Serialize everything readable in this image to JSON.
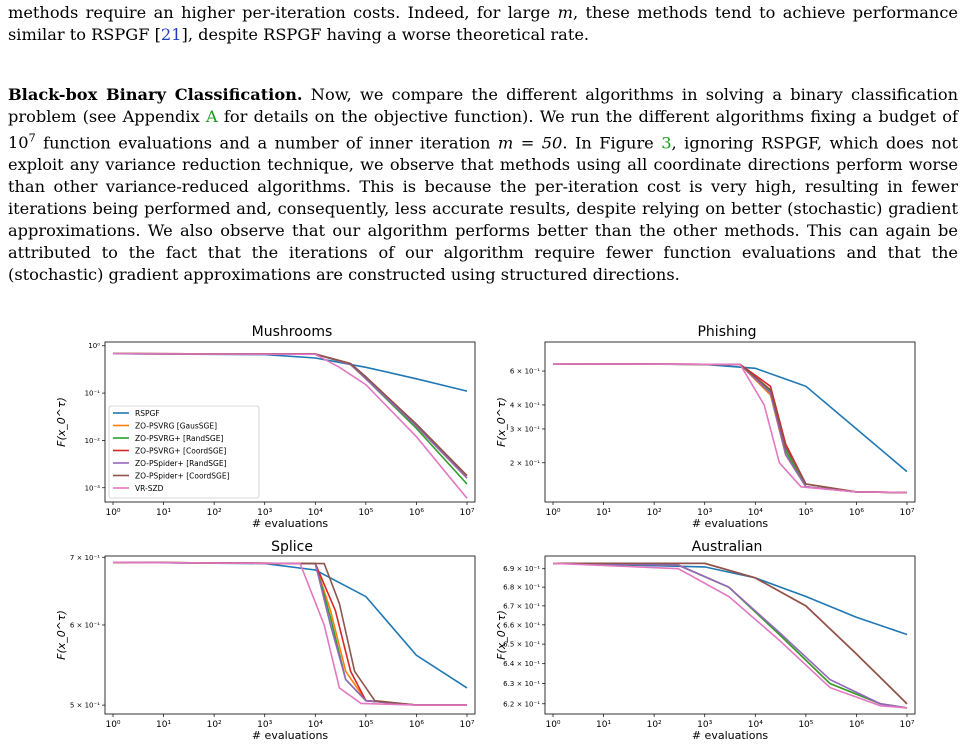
{
  "paragraph_top": {
    "text_a": "methods require an higher per-iteration costs. Indeed, for large ",
    "m": "m",
    "text_b": ", these methods tend to achieve performance similar to RSPGF [",
    "ref21": "21",
    "text_c": "], despite RSPGF having a worse theoretical rate."
  },
  "paragraph_main": {
    "heading": "Black-box Binary Classification.",
    "s1": " Now, we compare the different algorithms in solving a binary classification problem (see Appendix ",
    "appendix": "A",
    "s2": " for details on the objective function). We run the different algorithms fixing a budget of ",
    "budget_base": "10",
    "budget_exp": "7",
    "s3": " function evaluations and a number of inner iteration ",
    "m_eq": "m = 50",
    "s4": ". In Figure ",
    "fig_ref": "3",
    "s5": ", ignoring RSPGF, which does not exploit any variance reduction technique, we observe that methods using all coordinate directions perform worse than other variance-reduced algorithms. This is because the per-iteration cost is very high, resulting in fewer iterations being performed and, consequently, less accurate results, despite relying on better (stochastic) gradient approximations. We also observe that our algorithm performs better than the other methods. This can again be attributed to the fact that the iterations of our algorithm require fewer function evaluations and that the (stochastic) gradient approximations are constructed using structured directions."
  },
  "colors": {
    "RSPGF": "#1f77b4",
    "ZO-PSVRG [GausSGE]": "#ff7f0e",
    "ZO-PSVRG+ [RandSGE]": "#2ca02c",
    "ZO-PSVRG+ [CoordSGE]": "#d62728",
    "ZO-PSpider+ [RandSGE]": "#9467bd",
    "ZO-PSpider+ [CoordSGE]": "#8c564b",
    "VR-SZD": "#e377c2"
  },
  "chart_data": [
    {
      "type": "line",
      "title": "Mushrooms",
      "xlabel": "# evaluations",
      "ylabel": "F(x_0^τ)",
      "xscale": "log",
      "yscale": "log",
      "xlim": [
        1,
        10000000
      ],
      "ylim": [
        0.0005,
        1.2
      ],
      "x_ticks": [
        "10⁰",
        "10¹",
        "10²",
        "10³",
        "10⁴",
        "10⁵",
        "10⁶",
        "10⁷"
      ],
      "y_ticks": [
        {
          "v": 1,
          "t": "10⁰"
        },
        {
          "v": 0.1,
          "t": "10⁻¹"
        },
        {
          "v": 0.01,
          "t": "10⁻²"
        },
        {
          "v": 0.001,
          "t": "10⁻³"
        }
      ],
      "legend": "left-middle",
      "series": [
        {
          "name": "RSPGF",
          "x": [
            1,
            1000,
            10000,
            100000,
            1000000,
            10000000
          ],
          "y": [
            0.68,
            0.65,
            0.55,
            0.35,
            0.2,
            0.11
          ]
        },
        {
          "name": "ZO-PSVRG [GausSGE]",
          "x": [
            1,
            10000,
            50000,
            100000,
            1000000,
            10000000
          ],
          "y": [
            0.68,
            0.67,
            0.4,
            0.2,
            0.02,
            0.0016
          ]
        },
        {
          "name": "ZO-PSVRG+ [RandSGE]",
          "x": [
            1,
            10000,
            50000,
            100000,
            1000000,
            10000000
          ],
          "y": [
            0.68,
            0.67,
            0.4,
            0.2,
            0.018,
            0.0012
          ]
        },
        {
          "name": "ZO-PSVRG+ [CoordSGE]",
          "x": [
            1,
            10000,
            50000,
            100000,
            1000000,
            10000000
          ],
          "y": [
            0.68,
            0.67,
            0.42,
            0.22,
            0.022,
            0.0018
          ]
        },
        {
          "name": "ZO-PSpider+ [RandSGE]",
          "x": [
            1,
            10000,
            50000,
            100000,
            1000000,
            10000000
          ],
          "y": [
            0.68,
            0.67,
            0.4,
            0.2,
            0.02,
            0.0016
          ]
        },
        {
          "name": "ZO-PSpider+ [CoordSGE]",
          "x": [
            1,
            10000,
            50000,
            100000,
            1000000,
            10000000
          ],
          "y": [
            0.68,
            0.67,
            0.42,
            0.22,
            0.022,
            0.0018
          ]
        },
        {
          "name": "VR-SZD",
          "x": [
            1,
            10000,
            30000,
            100000,
            1000000,
            10000000
          ],
          "y": [
            0.68,
            0.66,
            0.35,
            0.15,
            0.012,
            0.0006
          ]
        }
      ]
    },
    {
      "type": "line",
      "title": "Phishing",
      "xlabel": "# evaluations",
      "ylabel": "F(x_0^τ)",
      "xscale": "log",
      "yscale": "log",
      "xlim": [
        1,
        10000000
      ],
      "ylim": [
        0.125,
        0.85
      ],
      "x_ticks": [
        "10⁰",
        "10¹",
        "10²",
        "10³",
        "10⁴",
        "10⁵",
        "10⁶",
        "10⁷"
      ],
      "y_ticks": [
        {
          "v": 0.6,
          "t": "6 × 10⁻¹"
        },
        {
          "v": 0.4,
          "t": "4 × 10⁻¹"
        },
        {
          "v": 0.3,
          "t": "3 × 10⁻¹"
        },
        {
          "v": 0.2,
          "t": "2 × 10⁻¹"
        }
      ],
      "series": [
        {
          "name": "RSPGF",
          "x": [
            1,
            1000,
            10000,
            100000,
            1000000,
            10000000
          ],
          "y": [
            0.655,
            0.65,
            0.62,
            0.5,
            0.3,
            0.18
          ]
        },
        {
          "name": "ZO-PSVRG [GausSGE]",
          "x": [
            1,
            5000,
            20000,
            40000,
            100000,
            1000000,
            10000000
          ],
          "y": [
            0.655,
            0.65,
            0.45,
            0.22,
            0.15,
            0.141,
            0.14
          ]
        },
        {
          "name": "ZO-PSVRG+ [RandSGE]",
          "x": [
            1,
            5000,
            20000,
            40000,
            100000,
            1000000,
            10000000
          ],
          "y": [
            0.655,
            0.65,
            0.47,
            0.23,
            0.15,
            0.141,
            0.14
          ]
        },
        {
          "name": "ZO-PSVRG+ [CoordSGE]",
          "x": [
            1,
            5000,
            20000,
            40000,
            100000,
            1000000,
            10000000
          ],
          "y": [
            0.655,
            0.65,
            0.5,
            0.25,
            0.155,
            0.141,
            0.14
          ]
        },
        {
          "name": "ZO-PSpider+ [RandSGE]",
          "x": [
            1,
            5000,
            20000,
            40000,
            100000,
            1000000,
            10000000
          ],
          "y": [
            0.655,
            0.65,
            0.46,
            0.22,
            0.15,
            0.141,
            0.14
          ]
        },
        {
          "name": "ZO-PSpider+ [CoordSGE]",
          "x": [
            1,
            5000,
            20000,
            40000,
            100000,
            1000000,
            10000000
          ],
          "y": [
            0.655,
            0.65,
            0.48,
            0.24,
            0.155,
            0.141,
            0.14
          ]
        },
        {
          "name": "VR-SZD",
          "x": [
            1,
            5000,
            15000,
            30000,
            80000,
            1000000,
            10000000
          ],
          "y": [
            0.655,
            0.65,
            0.4,
            0.2,
            0.15,
            0.141,
            0.14
          ]
        }
      ]
    },
    {
      "type": "line",
      "title": "Splice",
      "xlabel": "# evaluations",
      "ylabel": "F(x_0^τ)",
      "xscale": "log",
      "yscale": "log",
      "xlim": [
        1,
        10000000
      ],
      "ylim": [
        0.49,
        0.702
      ],
      "x_ticks": [
        "10⁰",
        "10¹",
        "10²",
        "10³",
        "10⁴",
        "10⁵",
        "10⁶",
        "10⁷"
      ],
      "y_ticks": [
        {
          "v": 0.7,
          "t": "7 × 10⁻¹"
        },
        {
          "v": 0.6,
          "t": "6 × 10⁻¹"
        },
        {
          "v": 0.5,
          "t": "5 × 10⁻¹"
        }
      ],
      "series": [
        {
          "name": "RSPGF",
          "x": [
            1,
            1000,
            10000,
            100000,
            1000000,
            10000000
          ],
          "y": [
            0.692,
            0.69,
            0.68,
            0.64,
            0.56,
            0.52
          ]
        },
        {
          "name": "ZO-PSVRG [GausSGE]",
          "x": [
            1,
            10000,
            20000,
            40000,
            100000,
            1000000,
            10000000
          ],
          "y": [
            0.692,
            0.69,
            0.62,
            0.54,
            0.505,
            0.5,
            0.5
          ]
        },
        {
          "name": "ZO-PSVRG+ [RandSGE]",
          "x": [
            1,
            10000,
            20000,
            40000,
            100000,
            1000000,
            10000000
          ],
          "y": [
            0.692,
            0.69,
            0.61,
            0.53,
            0.505,
            0.5,
            0.5
          ]
        },
        {
          "name": "ZO-PSVRG+ [CoordSGE]",
          "x": [
            1,
            10000,
            25000,
            50000,
            100000,
            1000000,
            10000000
          ],
          "y": [
            0.692,
            0.69,
            0.62,
            0.54,
            0.505,
            0.5,
            0.5
          ]
        },
        {
          "name": "ZO-PSpider+ [RandSGE]",
          "x": [
            1,
            10000,
            20000,
            40000,
            100000,
            1000000,
            10000000
          ],
          "y": [
            0.692,
            0.69,
            0.6,
            0.53,
            0.505,
            0.5,
            0.5
          ]
        },
        {
          "name": "ZO-PSpider+ [CoordSGE]",
          "x": [
            1,
            15000,
            30000,
            60000,
            150000,
            1000000,
            10000000
          ],
          "y": [
            0.692,
            0.69,
            0.63,
            0.54,
            0.505,
            0.5,
            0.5
          ]
        },
        {
          "name": "VR-SZD",
          "x": [
            1,
            5000,
            15000,
            30000,
            80000,
            1000000,
            10000000
          ],
          "y": [
            0.692,
            0.69,
            0.6,
            0.52,
            0.502,
            0.5,
            0.5
          ]
        }
      ]
    },
    {
      "type": "line",
      "title": "Australian",
      "xlabel": "# evaluations",
      "ylabel": "F(x_0^τ)",
      "xscale": "log",
      "yscale": "log",
      "xlim": [
        1,
        10000000
      ],
      "ylim": [
        0.615,
        0.697
      ],
      "x_ticks": [
        "10⁰",
        "10¹",
        "10²",
        "10³",
        "10⁴",
        "10⁵",
        "10⁶",
        "10⁷"
      ],
      "y_ticks": [
        {
          "v": 0.69,
          "t": "6.9 × 10⁻¹"
        },
        {
          "v": 0.68,
          "t": "6.8 × 10⁻¹"
        },
        {
          "v": 0.67,
          "t": "6.7 × 10⁻¹"
        },
        {
          "v": 0.66,
          "t": "6.6 × 10⁻¹"
        },
        {
          "v": 0.65,
          "t": "6.5 × 10⁻¹"
        },
        {
          "v": 0.64,
          "t": "6.4 × 10⁻¹"
        },
        {
          "v": 0.63,
          "t": "6.3 × 10⁻¹"
        },
        {
          "v": 0.62,
          "t": "6.2 × 10⁻¹"
        }
      ],
      "series": [
        {
          "name": "RSPGF",
          "x": [
            1,
            1000,
            10000,
            100000,
            1000000,
            10000000
          ],
          "y": [
            0.693,
            0.691,
            0.685,
            0.675,
            0.664,
            0.655
          ]
        },
        {
          "name": "ZO-PSVRG [GausSGE]",
          "x": [
            1,
            300,
            3000,
            30000,
            300000,
            3000000,
            10000000
          ],
          "y": [
            0.693,
            0.692,
            0.68,
            0.655,
            0.63,
            0.62,
            0.618
          ]
        },
        {
          "name": "ZO-PSVRG+ [RandSGE]",
          "x": [
            1,
            300,
            3000,
            30000,
            300000,
            3000000,
            10000000
          ],
          "y": [
            0.693,
            0.692,
            0.68,
            0.655,
            0.63,
            0.62,
            0.618
          ]
        },
        {
          "name": "ZO-PSVRG+ [CoordSGE]",
          "x": [
            1,
            1000,
            10000,
            100000,
            1000000,
            10000000
          ],
          "y": [
            0.693,
            0.693,
            0.685,
            0.67,
            0.645,
            0.62
          ]
        },
        {
          "name": "ZO-PSpider+ [RandSGE]",
          "x": [
            1,
            300,
            3000,
            30000,
            300000,
            3000000,
            10000000
          ],
          "y": [
            0.693,
            0.692,
            0.68,
            0.656,
            0.632,
            0.62,
            0.618
          ]
        },
        {
          "name": "ZO-PSpider+ [CoordSGE]",
          "x": [
            1,
            1000,
            10000,
            100000,
            1000000,
            10000000
          ],
          "y": [
            0.693,
            0.693,
            0.685,
            0.67,
            0.645,
            0.62
          ]
        },
        {
          "name": "VR-SZD",
          "x": [
            1,
            300,
            3000,
            30000,
            300000,
            3000000,
            10000000
          ],
          "y": [
            0.693,
            0.69,
            0.675,
            0.652,
            0.628,
            0.619,
            0.618
          ]
        }
      ]
    }
  ]
}
